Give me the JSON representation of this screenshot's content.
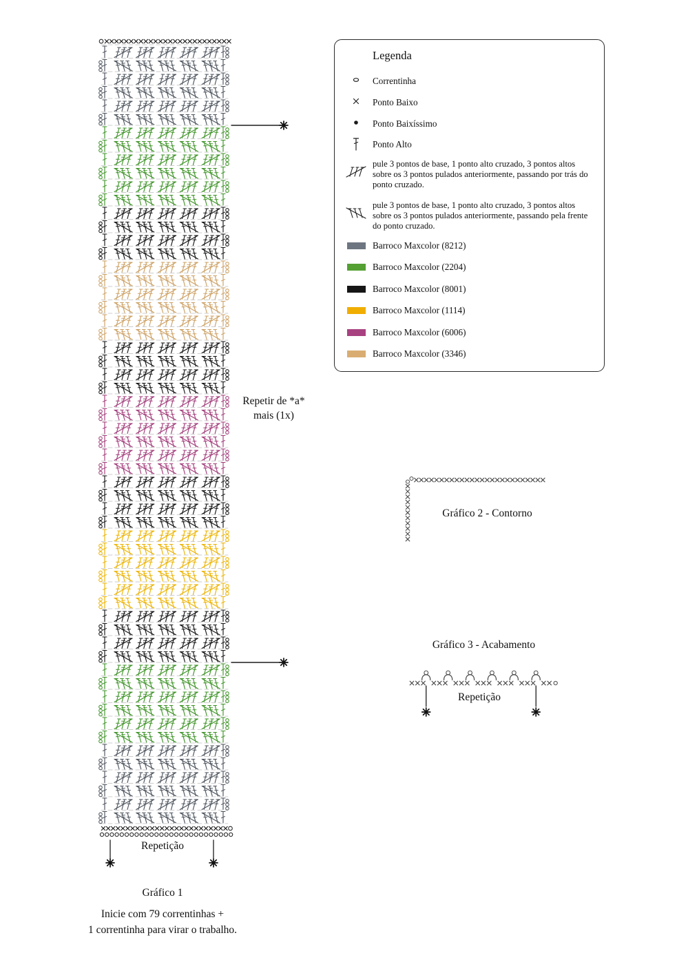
{
  "page": {
    "background": "#ffffff"
  },
  "legend": {
    "title": "Legenda",
    "items": [
      {
        "icon": "chain-icon",
        "label": "Correntinha"
      },
      {
        "icon": "single-crochet-icon",
        "label": "Ponto Baixo"
      },
      {
        "icon": "slip-stitch-icon",
        "label": "Ponto Baixíssimo"
      },
      {
        "icon": "treble-icon",
        "label": "Ponto Alto"
      },
      {
        "icon": "crossed-treble-back-icon",
        "label": "pule 3 pontos de base, 1 ponto alto cruzado, 3 pontos altos sobre os 3 pontos pulados anteriormente, passando por trás do ponto cruzado."
      },
      {
        "icon": "crossed-treble-front-icon",
        "label": "pule 3 pontos de base, 1 ponto alto cruzado, 3 pontos altos sobre os 3 pontos pulados anteriormente, passando pela frente do ponto cruzado."
      }
    ],
    "colors": [
      {
        "label": "Barroco Maxcolor (8212)",
        "hex": "#6d7580"
      },
      {
        "label": "Barroco Maxcolor (2204)",
        "hex": "#54a033"
      },
      {
        "label": "Barroco Maxcolor (8001)",
        "hex": "#161616"
      },
      {
        "label": "Barroco Maxcolor (1114)",
        "hex": "#f0ae00"
      },
      {
        "label": "Barroco Maxcolor (6006)",
        "hex": "#a84180"
      },
      {
        "label": "Barroco Maxcolor (3346)",
        "hex": "#d9ad72"
      }
    ]
  },
  "labels": {
    "repeat_note_line1": "Repetir de *a*",
    "repeat_note_line2": "mais (1x)",
    "grafico1_title": "Gráfico 1",
    "grafico1_repeat_label": "Repetição",
    "grafico2_title": "Gráfico 2 - Contorno",
    "grafico3_title": "Gráfico 3 - Acabamento",
    "grafico3_repeat_label": "Repetição",
    "footer_line1": "Inicie com 79 correntinhas +",
    "footer_line2": "1 correntinha para virar o trabalho."
  },
  "chart_data": [
    {
      "type": "crochet-chart",
      "name": "grafico1",
      "title": "Gráfico 1",
      "stitch_row_count": 58,
      "crossed_groups_per_row": 5,
      "foundation": {
        "top_chain": 1,
        "top_x_count": 26,
        "bottom_x_count": 26,
        "bottom_end_chain": 1,
        "bottom_chain_count": 27
      },
      "bands_top_to_bottom": [
        {
          "color_code": "8212",
          "rows": 6
        },
        {
          "color_code": "2204",
          "rows": 6
        },
        {
          "color_code": "8001",
          "rows": 4
        },
        {
          "color_code": "3346",
          "rows": 6
        },
        {
          "color_code": "8001",
          "rows": 4
        },
        {
          "color_code": "6006",
          "rows": 6
        },
        {
          "color_code": "8001",
          "rows": 4
        },
        {
          "color_code": "1114",
          "rows": 6
        },
        {
          "color_code": "8001",
          "rows": 4
        },
        {
          "color_code": "2204",
          "rows": 6
        },
        {
          "color_code": "8212",
          "rows": 6
        }
      ],
      "palette": {
        "8212": "#4d545d",
        "2204": "#3f9428",
        "8001": "#151515",
        "1114": "#edb403",
        "6006": "#a23d7b",
        "3346": "#cda164"
      },
      "repeat_markers_after_rows": [
        6,
        46
      ],
      "repeat_note": "Repetir de *a* mais (1x)",
      "bottom_repeat_label": "Repetição",
      "start_note": "Inicie com 79 correntinhas + 1 correntinha para virar o trabalho."
    },
    {
      "type": "crochet-border",
      "name": "grafico2",
      "title": "Gráfico 2 - Contorno",
      "corner_chains": 2,
      "top_row_x_count": 26,
      "left_column_x_count": 11,
      "symbol_color": "#4b4b4b"
    },
    {
      "type": "crochet-edging",
      "name": "grafico3",
      "title": "Gráfico 3 - Acabamento",
      "x_groups": [
        3,
        3,
        3,
        3,
        3,
        3,
        2
      ],
      "picot_count": 6,
      "ends_with_chain": true,
      "repeat_between_picot_indexes": [
        0,
        5
      ],
      "repeat_label": "Repetição",
      "symbol_color": "#4b4b4b"
    }
  ]
}
